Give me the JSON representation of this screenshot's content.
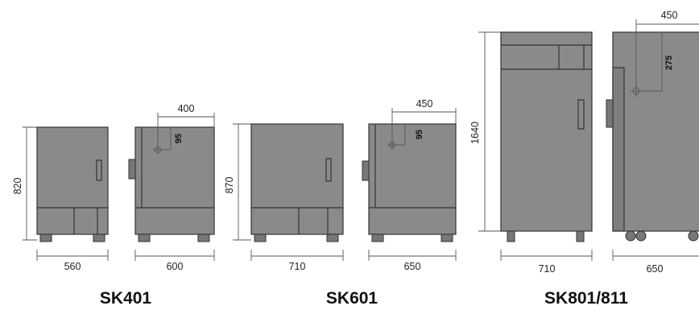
{
  "models": [
    {
      "name": "SK401",
      "height": "820",
      "width_front": "560",
      "width_side": "600",
      "inner_w": "400",
      "inner_h": "95"
    },
    {
      "name": "SK601",
      "height": "870",
      "width_front": "710",
      "width_side": "650",
      "inner_w": "450",
      "inner_h": "95"
    },
    {
      "name": "SK801/811",
      "height": "1640",
      "width_front": "710",
      "width_side": "650",
      "inner_w": "450",
      "inner_h": "275"
    }
  ]
}
